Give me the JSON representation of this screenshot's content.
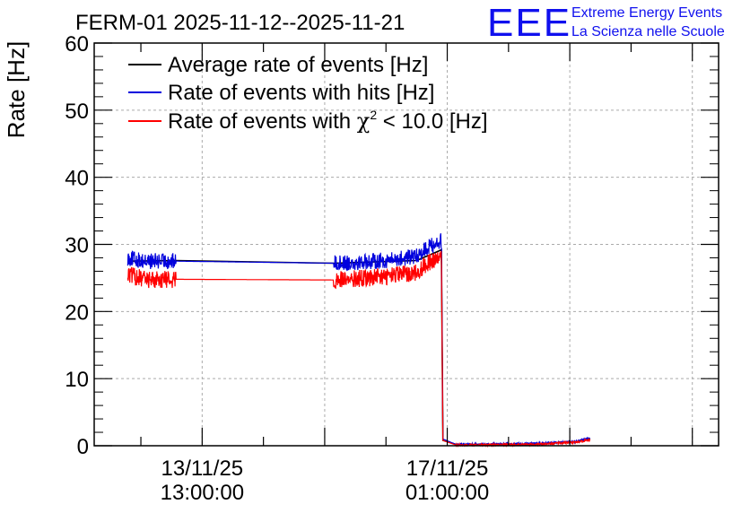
{
  "chart_data": {
    "type": "line",
    "title": "FERM-01 2025-11-12--2025-11-21",
    "xlabel": "",
    "ylabel": "Rate [Hz]",
    "ylim": [
      0,
      60
    ],
    "y_ticks": [
      0,
      10,
      20,
      30,
      40,
      50,
      60
    ],
    "x_tick_labels": [
      {
        "date": "13/11/25",
        "time": "13:00:00"
      },
      {
        "date": "17/11/25",
        "time": "01:00:00"
      }
    ],
    "x_unit": "hours since 2025-11-12 00:00",
    "xlim": [
      0,
      214
    ],
    "x_major_ticks": [
      37,
      121
    ],
    "grid": true,
    "legend_position": "top-left",
    "series": [
      {
        "name": "Average rate of events [Hz]",
        "color": "#000000",
        "points": [
          [
            11.5,
            27.5
          ],
          [
            28.0,
            27.6
          ],
          [
            82.0,
            27.2
          ],
          [
            110.5,
            27.6
          ],
          [
            118.0,
            29.0
          ],
          [
            119.0,
            29.2
          ],
          [
            119.5,
            0.8
          ],
          [
            124.0,
            0.2
          ],
          [
            150.0,
            0.2
          ],
          [
            165.0,
            0.6
          ],
          [
            170.0,
            1.0
          ]
        ]
      },
      {
        "name": "Rate of events with hits [Hz]",
        "color": "#0000dd",
        "noise": 1.2,
        "points": [
          [
            11.5,
            28.0
          ],
          [
            17.0,
            27.5
          ],
          [
            28.0,
            27.5
          ],
          [
            82.0,
            27.2
          ],
          [
            100.0,
            27.6
          ],
          [
            110.5,
            28.2
          ],
          [
            114.0,
            29.5
          ],
          [
            119.0,
            30.5
          ],
          [
            119.5,
            1.0
          ],
          [
            124.0,
            0.2
          ],
          [
            150.0,
            0.3
          ],
          [
            165.0,
            0.6
          ],
          [
            170.0,
            1.2
          ]
        ]
      },
      {
        "name_parts": [
          "Rate of events with ",
          "χ",
          "2",
          " < 10.0 [Hz]"
        ],
        "color": "#ff0000",
        "noise": 1.3,
        "points": [
          [
            11.5,
            25.5
          ],
          [
            17.0,
            24.8
          ],
          [
            28.0,
            24.8
          ],
          [
            82.0,
            24.7
          ],
          [
            100.0,
            25.2
          ],
          [
            110.5,
            25.8
          ],
          [
            114.0,
            27.2
          ],
          [
            119.0,
            28.0
          ],
          [
            119.5,
            0.8
          ],
          [
            124.0,
            0.1
          ],
          [
            150.0,
            0.2
          ],
          [
            165.0,
            0.5
          ],
          [
            170.0,
            0.9
          ]
        ]
      }
    ]
  },
  "logo": {
    "mark": "EEE",
    "line1": "Extreme Energy Events",
    "line2": "La Scienza nelle Scuole",
    "color": "#1010ee"
  }
}
